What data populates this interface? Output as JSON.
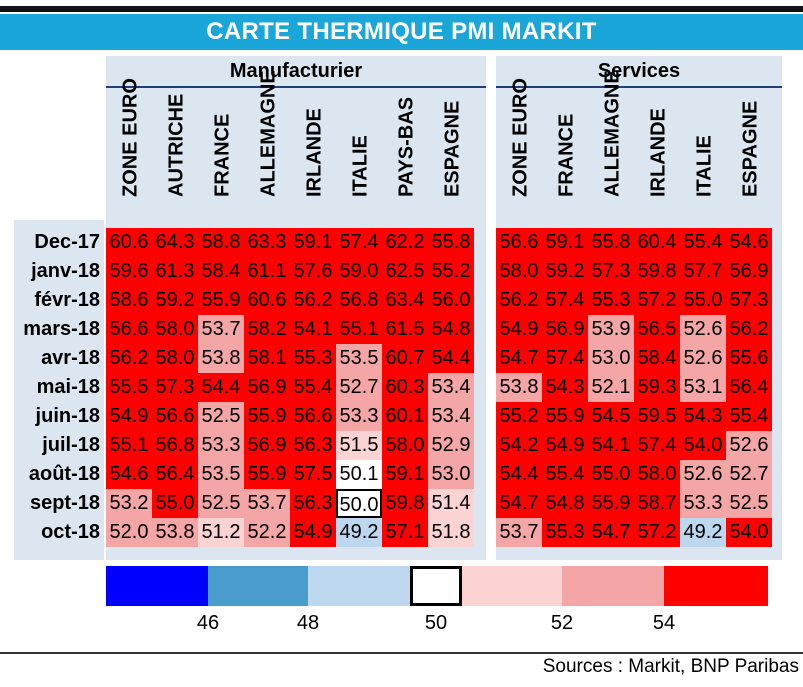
{
  "title": "CARTE THERMIQUE PMI MARKIT",
  "source": "Sources : Markit, BNP Paribas",
  "colors": {
    "red": "#ff0000",
    "pink_light": "#fbd3d3",
    "pink_mid": "#f4a6a6",
    "white": "#ffffff",
    "light_blue": "#bdd7ee",
    "blue_mid": "#4a9ccd",
    "blue": "#0000ff",
    "title_bar": "#1aa6d8",
    "panel": "#dbe6f1"
  },
  "chart_data": {
    "type": "heatmap",
    "title": "CARTE THERMIQUE PMI MARKIT",
    "rows": [
      "Dec-17",
      "janv-18",
      "févr-18",
      "mars-18",
      "avr-18",
      "mai-18",
      "juin-18",
      "juil-18",
      "août-18",
      "sept-18",
      "oct-18"
    ],
    "groups": [
      {
        "name": "Manufacturier",
        "columns": [
          "ZONE EURO",
          "AUTRICHE",
          "FRANCE",
          "ALLEMAGNE",
          "IRLANDE",
          "ITALIE",
          "PAYS-BAS",
          "ESPAGNE"
        ],
        "values": [
          [
            "60.6",
            "64.3",
            "58.8",
            "63.3",
            "59.1",
            "57.4",
            "62.2",
            "55.8"
          ],
          [
            "59.6",
            "61.3",
            "58.4",
            "61.1",
            "57.6",
            "59.0",
            "62.5",
            "55.2"
          ],
          [
            "58.6",
            "59.2",
            "55.9",
            "60.6",
            "56.2",
            "56.8",
            "63.4",
            "56.0"
          ],
          [
            "56.6",
            "58.0",
            "53.7",
            "58.2",
            "54.1",
            "55.1",
            "61.5",
            "54.8"
          ],
          [
            "56.2",
            "58.0",
            "53.8",
            "58.1",
            "55.3",
            "53.5",
            "60.7",
            "54.4"
          ],
          [
            "55.5",
            "57.3",
            "54.4",
            "56.9",
            "55.4",
            "52.7",
            "60.3",
            "53.4"
          ],
          [
            "54.9",
            "56.6",
            "52.5",
            "55.9",
            "56.6",
            "53.3",
            "60.1",
            "53.4"
          ],
          [
            "55.1",
            "56.8",
            "53.3",
            "56.9",
            "56.3",
            "51.5",
            "58.0",
            "52.9"
          ],
          [
            "54.6",
            "56.4",
            "53.5",
            "55.9",
            "57.5",
            "50.1",
            "59.1",
            "53.0"
          ],
          [
            "53.2",
            "55.0",
            "52.5",
            "53.7",
            "56.3",
            "50.0",
            "59.8",
            "51.4"
          ],
          [
            "52.0",
            "53.8",
            "51.2",
            "52.2",
            "54.9",
            "49.2",
            "57.1",
            "51.8"
          ]
        ]
      },
      {
        "name": "Services",
        "columns": [
          "ZONE EURO",
          "FRANCE",
          "ALLEMAGNE",
          "IRLANDE",
          "ITALIE",
          "ESPAGNE"
        ],
        "values": [
          [
            "56.6",
            "59.1",
            "55.8",
            "60.4",
            "55.4",
            "54.6"
          ],
          [
            "58.0",
            "59.2",
            "57.3",
            "59.8",
            "57.7",
            "56.9"
          ],
          [
            "56.2",
            "57.4",
            "55.3",
            "57.2",
            "55.0",
            "57.3"
          ],
          [
            "54.9",
            "56.9",
            "53.9",
            "56.5",
            "52.6",
            "56.2"
          ],
          [
            "54.7",
            "57.4",
            "53.0",
            "58.4",
            "52.6",
            "55.6"
          ],
          [
            "53.8",
            "54.3",
            "52.1",
            "59.3",
            "53.1",
            "56.4"
          ],
          [
            "55.2",
            "55.9",
            "54.5",
            "59.5",
            "54.3",
            "55.4"
          ],
          [
            "54.2",
            "54.9",
            "54.1",
            "57.4",
            "54.0",
            "52.6"
          ],
          [
            "54.4",
            "55.4",
            "55.0",
            "58.0",
            "52.6",
            "52.7"
          ],
          [
            "54.7",
            "54.8",
            "55.9",
            "58.7",
            "53.3",
            "52.5"
          ],
          [
            "53.7",
            "55.3",
            "54.7",
            "57.2",
            "49.2",
            "54.0"
          ]
        ]
      }
    ],
    "legend": {
      "tick_labels": [
        "46",
        "48",
        "50",
        "52",
        "54"
      ],
      "bins": [
        "blue",
        "blue_mid",
        "light_blue",
        "white",
        "pink_light",
        "pink_mid",
        "red"
      ]
    }
  }
}
